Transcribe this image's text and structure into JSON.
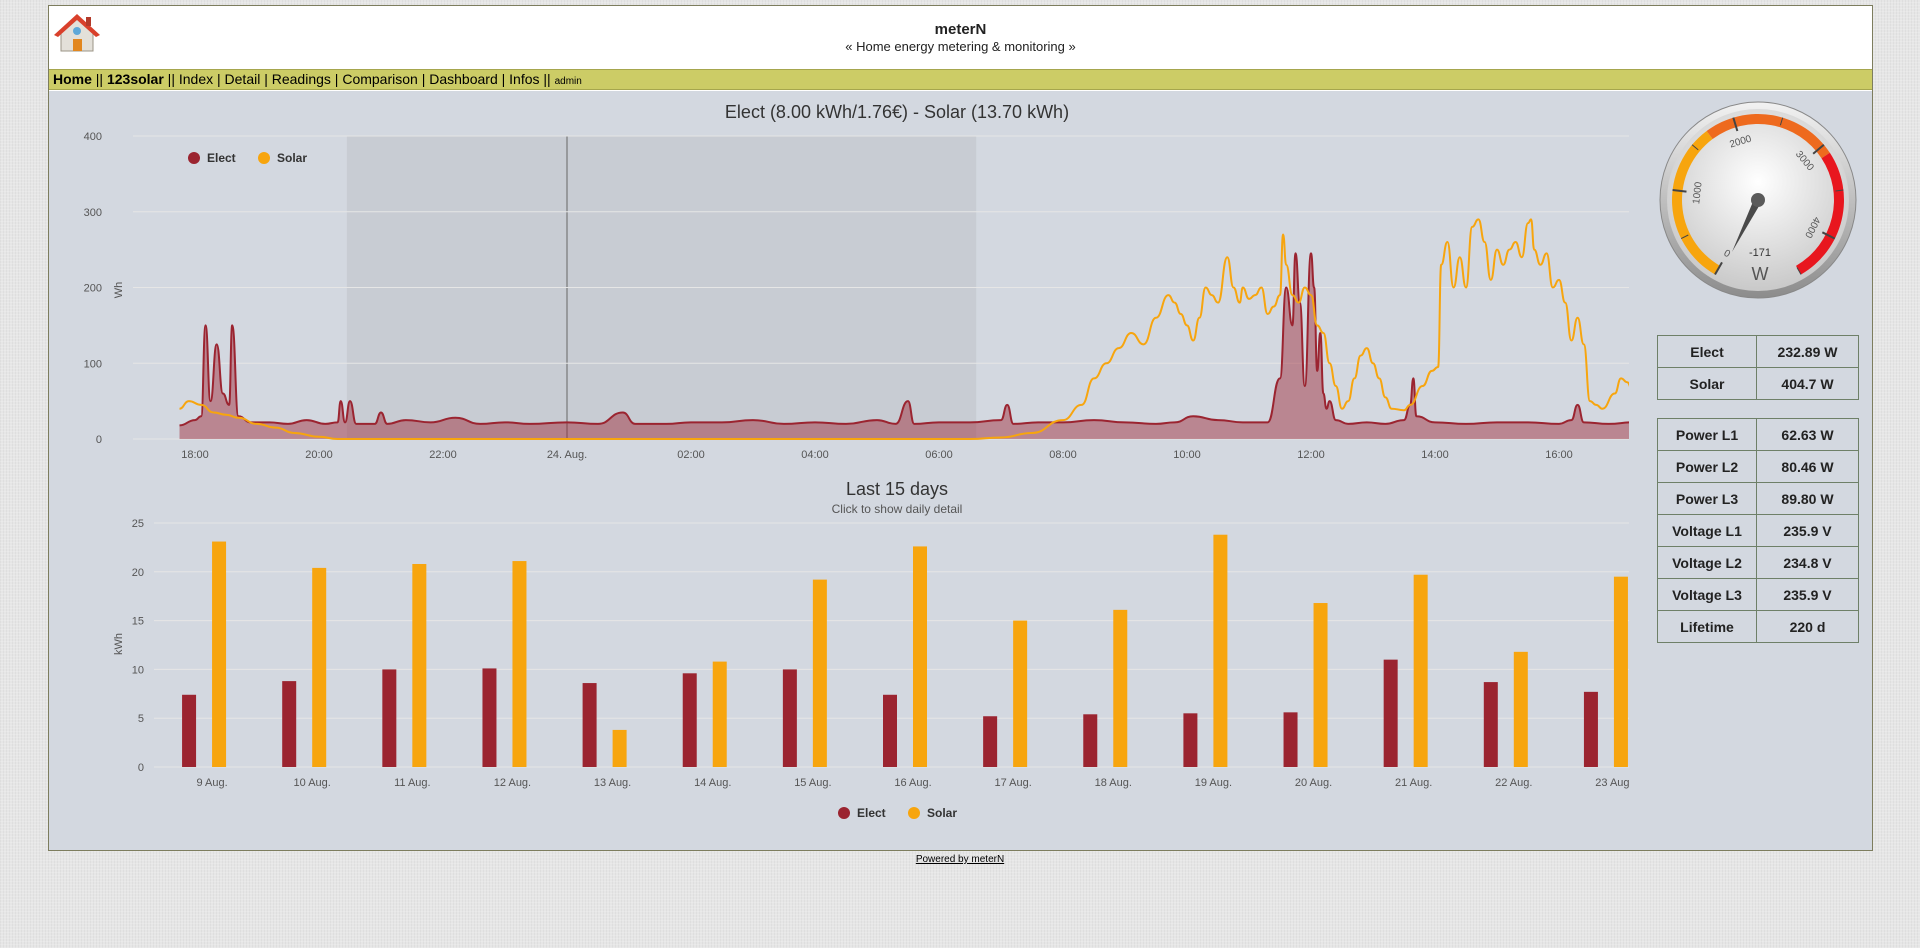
{
  "header": {
    "title": "meterN",
    "subtitle": "« Home energy metering & monitoring »"
  },
  "nav": {
    "items": [
      {
        "label": "Home",
        "bold": true
      },
      {
        "sep": " || "
      },
      {
        "label": "123solar",
        "bold": true
      },
      {
        "sep": " || "
      },
      {
        "label": "Index"
      },
      {
        "sep": " | "
      },
      {
        "label": "Detail"
      },
      {
        "sep": " | "
      },
      {
        "label": "Readings"
      },
      {
        "sep": " | "
      },
      {
        "label": "Comparison"
      },
      {
        "sep": " | "
      },
      {
        "label": "Dashboard"
      },
      {
        "sep": " | "
      },
      {
        "label": "Infos"
      },
      {
        "sep": " || "
      },
      {
        "label": "admin",
        "small": true
      }
    ]
  },
  "colors": {
    "elect": "#9b2430",
    "solar": "#f7a50e"
  },
  "gauge": {
    "value": -171,
    "unit": "W",
    "min": 0,
    "max": 4500,
    "ticks": [
      "0",
      "1000",
      "2000",
      "3000",
      "4000"
    ]
  },
  "summary": [
    {
      "label": "Elect",
      "value": "232.89 W"
    },
    {
      "label": "Solar",
      "value": "404.7 W"
    }
  ],
  "readings": [
    {
      "label": "Power L1",
      "value": "62.63 W"
    },
    {
      "label": "Power L2",
      "value": "80.46 W"
    },
    {
      "label": "Power L3",
      "value": "89.80 W"
    },
    {
      "label": "Voltage L1",
      "value": "235.9 V"
    },
    {
      "label": "Voltage L2",
      "value": "234.8 V"
    },
    {
      "label": "Voltage L3",
      "value": "235.9 V"
    },
    {
      "label": "Lifetime",
      "value": "220 d"
    }
  ],
  "footer": {
    "link": "Powered by meterN"
  },
  "chart_data": [
    {
      "type": "area",
      "title": "Elect (8.00 kWh/1.76€) - Solar (13.70 kWh)",
      "ylabel": "Wh",
      "ylim": [
        0,
        400
      ],
      "yticks": [
        0,
        100,
        200,
        300,
        400
      ],
      "xticks": [
        "18:00",
        "20:00",
        "22:00",
        "24. Aug.",
        "02:00",
        "04:00",
        "06:00",
        "08:00",
        "10:00",
        "12:00",
        "14:00",
        "16:00"
      ],
      "x_unit": "hours since 18:00 (23 Aug.)",
      "legend": "top-left",
      "night_band": [
        2.45,
        12.6
      ],
      "series": [
        {
          "name": "Elect",
          "type": "area",
          "points": [
            [
              -0.25,
              18
            ],
            [
              0,
              25
            ],
            [
              0.1,
              30
            ],
            [
              0.17,
              150
            ],
            [
              0.25,
              50
            ],
            [
              0.35,
              125
            ],
            [
              0.45,
              60
            ],
            [
              0.55,
              45
            ],
            [
              0.6,
              150
            ],
            [
              0.7,
              30
            ],
            [
              0.9,
              22
            ],
            [
              1.2,
              22
            ],
            [
              1.5,
              20
            ],
            [
              1.8,
              25
            ],
            [
              2.1,
              20
            ],
            [
              2.3,
              22
            ],
            [
              2.35,
              50
            ],
            [
              2.42,
              22
            ],
            [
              2.5,
              50
            ],
            [
              2.6,
              20
            ],
            [
              2.9,
              20
            ],
            [
              3.0,
              35
            ],
            [
              3.1,
              20
            ],
            [
              3.4,
              25
            ],
            [
              3.8,
              22
            ],
            [
              4.2,
              28
            ],
            [
              4.6,
              20
            ],
            [
              5.0,
              22
            ],
            [
              5.4,
              20
            ],
            [
              6.0,
              22
            ],
            [
              6.5,
              20
            ],
            [
              6.9,
              35
            ],
            [
              7.1,
              20
            ],
            [
              7.6,
              20
            ],
            [
              8.0,
              22
            ],
            [
              8.5,
              22
            ],
            [
              9.0,
              25
            ],
            [
              9.5,
              20
            ],
            [
              10.0,
              22
            ],
            [
              10.5,
              20
            ],
            [
              11.0,
              25
            ],
            [
              11.3,
              20
            ],
            [
              11.5,
              50
            ],
            [
              11.6,
              20
            ],
            [
              12.0,
              22
            ],
            [
              12.5,
              22
            ],
            [
              13.0,
              25
            ],
            [
              13.1,
              45
            ],
            [
              13.2,
              20
            ],
            [
              13.6,
              22
            ],
            [
              14.0,
              22
            ],
            [
              14.5,
              25
            ],
            [
              15.0,
              22
            ],
            [
              15.5,
              20
            ],
            [
              15.8,
              22
            ],
            [
              16.1,
              30
            ],
            [
              16.5,
              25
            ],
            [
              16.9,
              22
            ],
            [
              17.3,
              22
            ],
            [
              17.5,
              80
            ],
            [
              17.6,
              200
            ],
            [
              17.7,
              150
            ],
            [
              17.75,
              245
            ],
            [
              17.82,
              180
            ],
            [
              17.9,
              70
            ],
            [
              18.0,
              245
            ],
            [
              18.05,
              200
            ],
            [
              18.1,
              90
            ],
            [
              18.15,
              140
            ],
            [
              18.2,
              60
            ],
            [
              18.25,
              40
            ],
            [
              18.3,
              50
            ],
            [
              18.4,
              25
            ],
            [
              18.6,
              20
            ],
            [
              18.9,
              22
            ],
            [
              19.2,
              20
            ],
            [
              19.5,
              25
            ],
            [
              19.6,
              45
            ],
            [
              19.65,
              80
            ],
            [
              19.7,
              30
            ],
            [
              20.0,
              22
            ],
            [
              20.5,
              20
            ],
            [
              21.0,
              22
            ],
            [
              21.5,
              22
            ],
            [
              22.0,
              20
            ],
            [
              22.2,
              25
            ],
            [
              22.3,
              45
            ],
            [
              22.4,
              22
            ],
            [
              22.8,
              20
            ],
            [
              23.2,
              22
            ],
            [
              23.6,
              20
            ],
            [
              24.0,
              20
            ],
            [
              24.5,
              22
            ],
            [
              24.9,
              22
            ],
            [
              25.0,
              115
            ],
            [
              25.05,
              60
            ],
            [
              25.2,
              112
            ],
            [
              25.3,
              60
            ],
            [
              25.4,
              20
            ],
            [
              25.8,
              18
            ]
          ]
        },
        {
          "name": "Solar",
          "type": "line",
          "points": [
            [
              -0.25,
              40
            ],
            [
              -0.1,
              50
            ],
            [
              0.1,
              45
            ],
            [
              0.3,
              35
            ],
            [
              0.5,
              32
            ],
            [
              0.7,
              28
            ],
            [
              1.0,
              20
            ],
            [
              1.3,
              15
            ],
            [
              1.6,
              8
            ],
            [
              2.0,
              3
            ],
            [
              2.3,
              0
            ],
            [
              12.5,
              0
            ],
            [
              13.0,
              2
            ],
            [
              13.5,
              8
            ],
            [
              14.0,
              25
            ],
            [
              14.3,
              45
            ],
            [
              14.5,
              80
            ],
            [
              14.7,
              100
            ],
            [
              14.9,
              120
            ],
            [
              15.1,
              140
            ],
            [
              15.3,
              125
            ],
            [
              15.5,
              160
            ],
            [
              15.7,
              190
            ],
            [
              15.8,
              180
            ],
            [
              15.9,
              165
            ],
            [
              16.0,
              150
            ],
            [
              16.1,
              130
            ],
            [
              16.2,
              160
            ],
            [
              16.3,
              200
            ],
            [
              16.4,
              190
            ],
            [
              16.5,
              180
            ],
            [
              16.65,
              240
            ],
            [
              16.75,
              200
            ],
            [
              16.85,
              180
            ],
            [
              16.9,
              200
            ],
            [
              17.0,
              185
            ],
            [
              17.1,
              190
            ],
            [
              17.2,
              200
            ],
            [
              17.3,
              165
            ],
            [
              17.4,
              175
            ],
            [
              17.5,
              190
            ],
            [
              17.55,
              270
            ],
            [
              17.6,
              230
            ],
            [
              17.7,
              190
            ],
            [
              17.8,
              180
            ],
            [
              17.9,
              200
            ],
            [
              18.0,
              190
            ],
            [
              18.1,
              150
            ],
            [
              18.2,
              140
            ],
            [
              18.3,
              100
            ],
            [
              18.4,
              70
            ],
            [
              18.5,
              40
            ],
            [
              18.6,
              50
            ],
            [
              18.7,
              80
            ],
            [
              18.8,
              110
            ],
            [
              18.9,
              120
            ],
            [
              19.0,
              100
            ],
            [
              19.1,
              80
            ],
            [
              19.2,
              55
            ],
            [
              19.3,
              40
            ],
            [
              19.5,
              38
            ],
            [
              19.6,
              45
            ],
            [
              19.8,
              70
            ],
            [
              19.95,
              90
            ],
            [
              20.05,
              95
            ],
            [
              20.1,
              230
            ],
            [
              20.2,
              260
            ],
            [
              20.3,
              200
            ],
            [
              20.4,
              240
            ],
            [
              20.5,
              200
            ],
            [
              20.6,
              280
            ],
            [
              20.7,
              290
            ],
            [
              20.8,
              260
            ],
            [
              20.9,
              210
            ],
            [
              21.0,
              250
            ],
            [
              21.1,
              230
            ],
            [
              21.2,
              250
            ],
            [
              21.3,
              260
            ],
            [
              21.4,
              240
            ],
            [
              21.5,
              285
            ],
            [
              21.55,
              290
            ],
            [
              21.6,
              250
            ],
            [
              21.7,
              230
            ],
            [
              21.8,
              245
            ],
            [
              21.9,
              200
            ],
            [
              22.0,
              210
            ],
            [
              22.1,
              180
            ],
            [
              22.2,
              130
            ],
            [
              22.3,
              160
            ],
            [
              22.4,
              125
            ],
            [
              22.5,
              50
            ],
            [
              22.6,
              45
            ],
            [
              22.7,
              40
            ],
            [
              22.9,
              60
            ],
            [
              23.0,
              80
            ],
            [
              23.1,
              75
            ],
            [
              23.2,
              60
            ],
            [
              23.3,
              50
            ],
            [
              23.4,
              60
            ],
            [
              23.5,
              120
            ],
            [
              23.6,
              90
            ],
            [
              23.7,
              120
            ],
            [
              23.8,
              105
            ],
            [
              23.9,
              60
            ],
            [
              24.0,
              70
            ],
            [
              24.1,
              100
            ],
            [
              24.2,
              80
            ],
            [
              24.3,
              60
            ],
            [
              24.4,
              50
            ],
            [
              24.5,
              60
            ],
            [
              24.6,
              80
            ],
            [
              24.7,
              70
            ],
            [
              24.8,
              50
            ],
            [
              24.9,
              60
            ],
            [
              25.0,
              55
            ],
            [
              25.1,
              50
            ],
            [
              25.2,
              70
            ],
            [
              25.3,
              90
            ],
            [
              25.4,
              80
            ],
            [
              25.5,
              70
            ],
            [
              25.6,
              60
            ],
            [
              25.7,
              50
            ],
            [
              25.8,
              50
            ]
          ]
        }
      ]
    },
    {
      "type": "bar",
      "title": "Last 15 days",
      "subtitle": "Click to show daily detail",
      "ylabel": "kWh",
      "ylim": [
        0,
        25
      ],
      "yticks": [
        0,
        5,
        10,
        15,
        20,
        25
      ],
      "categories": [
        "9 Aug.",
        "10 Aug.",
        "11 Aug.",
        "12 Aug.",
        "13 Aug.",
        "14 Aug.",
        "15 Aug.",
        "16 Aug.",
        "17 Aug.",
        "18 Aug.",
        "19 Aug.",
        "20 Aug.",
        "21 Aug.",
        "22 Aug.",
        "23 Aug."
      ],
      "legend": "bottom-center",
      "series": [
        {
          "name": "Elect",
          "values": [
            7.4,
            8.8,
            10.0,
            10.1,
            8.6,
            9.6,
            10.0,
            7.4,
            5.2,
            5.4,
            5.5,
            5.6,
            11.0,
            8.7,
            7.7
          ]
        },
        {
          "name": "Solar",
          "values": [
            23.1,
            20.4,
            20.8,
            21.1,
            3.8,
            10.8,
            19.2,
            22.6,
            15.0,
            16.1,
            23.8,
            16.8,
            19.7,
            11.8,
            19.5
          ]
        }
      ]
    }
  ]
}
